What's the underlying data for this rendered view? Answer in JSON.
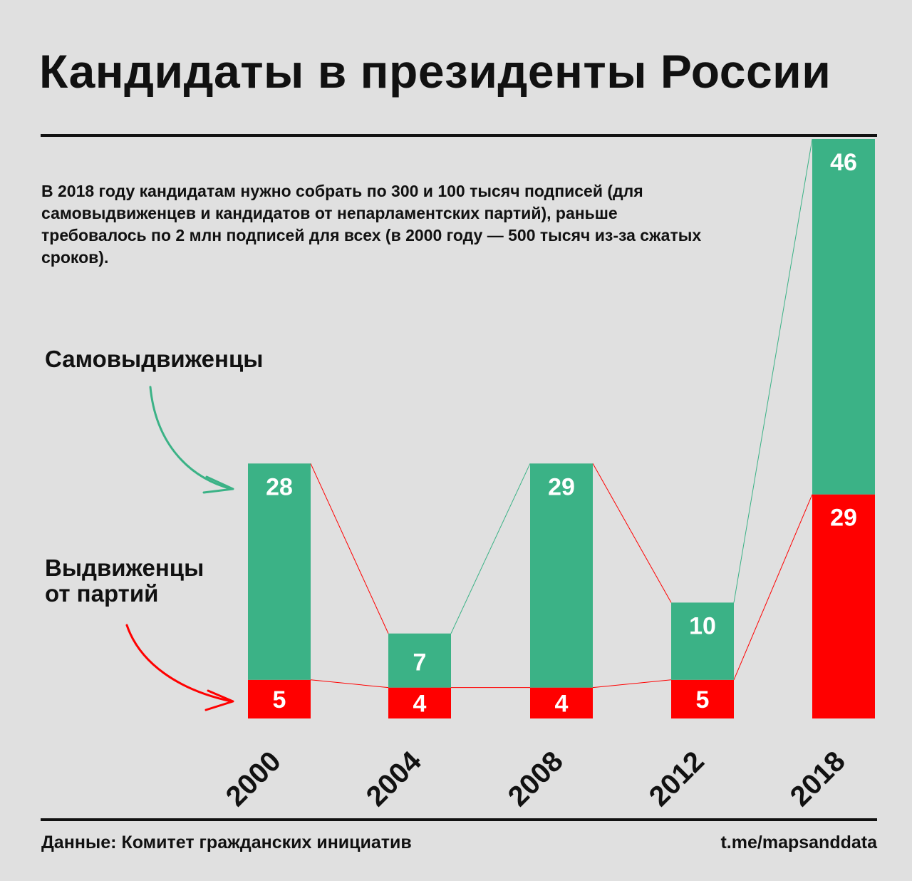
{
  "header": {
    "title": "Кандидаты в президенты России",
    "description": "В 2018 году кандидатам нужно собрать по 300 и 100 тысяч подписей (для самовыдвиженцев и кандидатов от непарламентских партий), раньше требовалось по 2 млн подписей для всех (в 2000 году — 500 тысяч из-за сжатых сроков)."
  },
  "footer": {
    "source": "Данные: Комитет гражданских инициатив",
    "credit": "t.me/mapsanddata"
  },
  "colors": {
    "self_nominated": "#3bb286",
    "party_nominated": "#ff0000",
    "text": "#111111",
    "background": "#e0e0e0"
  },
  "chart_data": {
    "type": "bar",
    "stacked": true,
    "categories": [
      "2000",
      "2004",
      "2008",
      "2012",
      "2018"
    ],
    "series": [
      {
        "name": "Выдвиженцы от партий",
        "values": [
          5,
          4,
          4,
          5,
          29
        ]
      },
      {
        "name": "Самовыдвиженцы",
        "values": [
          28,
          7,
          29,
          10,
          46
        ]
      }
    ],
    "legend": {
      "self_nominated_lines": [
        "Самовыдвиженцы"
      ],
      "party_nominated_lines": [
        "Выдвиженцы",
        "от партий"
      ]
    },
    "title": "Кандидаты в президенты России",
    "xlabel": "",
    "ylabel": "",
    "grid": false,
    "connector_lines": true
  }
}
